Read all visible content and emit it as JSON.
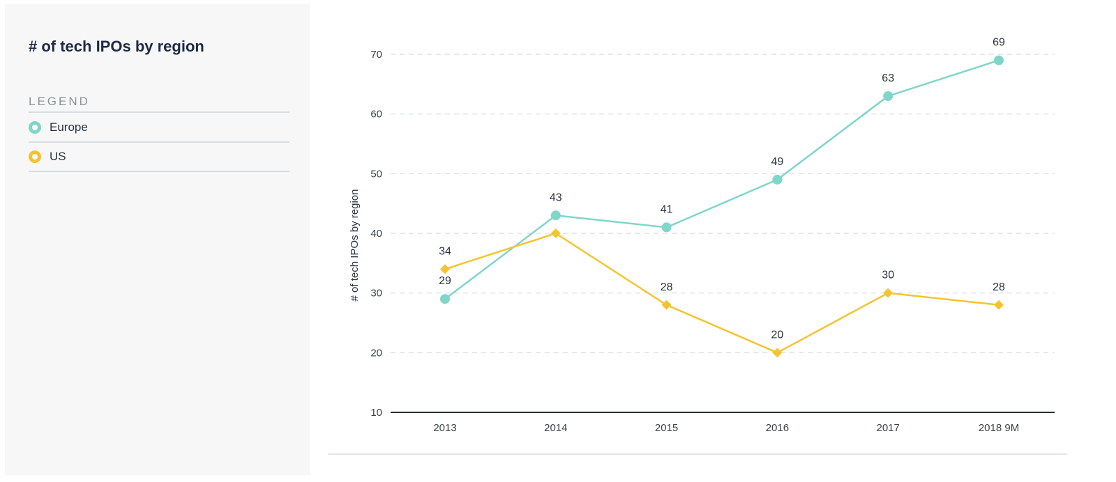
{
  "sidebar": {
    "title": "# of tech IPOs by region",
    "legend_heading": "LEGEND",
    "legend_items": [
      {
        "label": "Europe",
        "color": "#7fd6c9"
      },
      {
        "label": "US",
        "color": "#f4c430"
      }
    ]
  },
  "chart_data": {
    "type": "line",
    "title": "# of tech IPOs by region",
    "xlabel": "",
    "ylabel": "# of tech IPOs by region",
    "categories": [
      "2013",
      "2014",
      "2015",
      "2016",
      "2017",
      "2018 9M"
    ],
    "ylim": [
      10,
      70
    ],
    "yticks": [
      10,
      20,
      30,
      40,
      50,
      60,
      70
    ],
    "grid": true,
    "legend": "left-panel",
    "series": [
      {
        "name": "Europe",
        "color": "#7fd6c9",
        "marker": "circle",
        "values": [
          29,
          43,
          41,
          49,
          63,
          69
        ],
        "labels": [
          "29",
          "43",
          "41",
          "49",
          "63",
          "69"
        ]
      },
      {
        "name": "US",
        "color": "#f4c430",
        "marker": "diamond",
        "values": [
          34,
          40,
          28,
          20,
          30,
          28
        ],
        "labels": [
          "34",
          "",
          "28",
          "20",
          "30",
          "28"
        ]
      }
    ]
  }
}
